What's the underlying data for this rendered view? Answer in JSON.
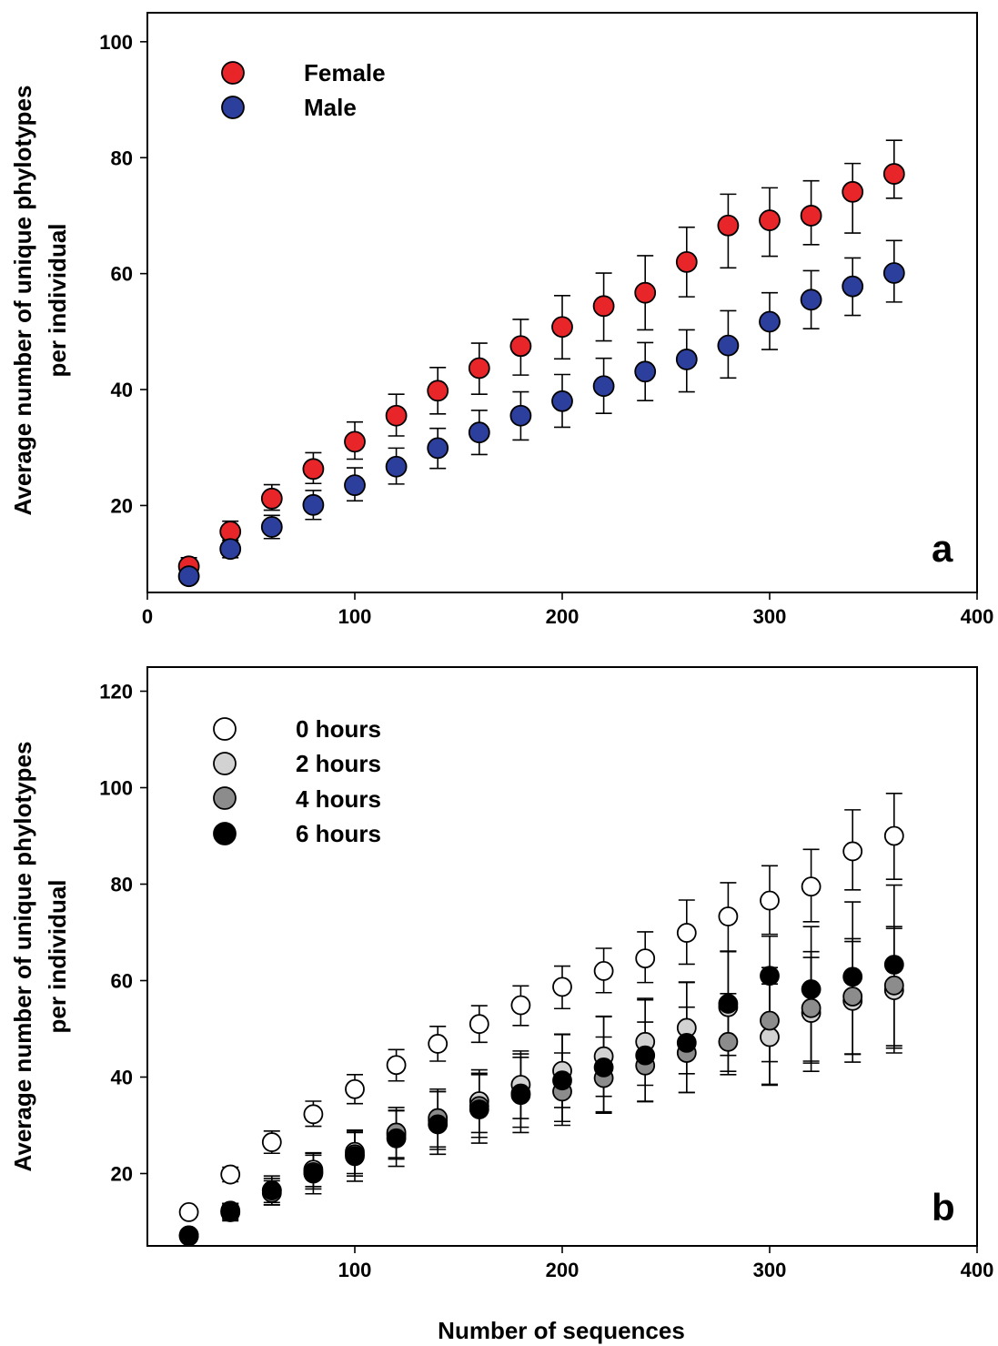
{
  "figure": {
    "xlabel": "Number of sequences"
  },
  "chart_data": [
    {
      "type": "scatter",
      "panel": "a",
      "ylabel_line1": "Average number of unique phylotypes",
      "ylabel_line2": "per individual",
      "xlim": [
        0,
        400
      ],
      "ylim": [
        5,
        105
      ],
      "xticks": [
        "0",
        "100",
        "200",
        "300",
        "400"
      ],
      "yticks": [
        "20",
        "40",
        "60",
        "80",
        "100"
      ],
      "xtick_values": [
        0,
        100,
        200,
        300,
        400
      ],
      "ytick_values": [
        20,
        40,
        60,
        80,
        100
      ],
      "legend_position": "top-left",
      "x": [
        20,
        40,
        60,
        80,
        100,
        120,
        140,
        160,
        180,
        200,
        220,
        240,
        260,
        280,
        300,
        320,
        340,
        360
      ],
      "series": [
        {
          "name": "Female",
          "color": "#e8262a",
          "values": [
            9.5,
            15.5,
            21.2,
            26.3,
            31.0,
            35.5,
            39.8,
            43.7,
            47.5,
            50.8,
            54.4,
            56.7,
            62.0,
            68.3,
            69.2,
            70.0,
            74.1,
            77.2
          ],
          "err_up": [
            1.5,
            1.8,
            2.4,
            2.8,
            3.4,
            3.7,
            4.0,
            4.3,
            4.6,
            5.4,
            5.7,
            6.4,
            6.0,
            5.4,
            5.6,
            6.0,
            4.9,
            5.8
          ],
          "err_down": [
            1.0,
            1.5,
            2.0,
            2.5,
            3.0,
            3.5,
            4.0,
            4.5,
            5.0,
            5.5,
            6.0,
            6.4,
            6.0,
            7.3,
            6.2,
            5.0,
            7.1,
            4.2
          ]
        },
        {
          "name": "Male",
          "color": "#2d3f9c",
          "values": [
            7.8,
            12.5,
            16.3,
            20.1,
            23.5,
            26.7,
            29.9,
            32.6,
            35.5,
            38.0,
            40.6,
            43.1,
            45.2,
            47.6,
            51.7,
            55.5,
            57.8,
            60.1
          ],
          "err_up": [
            1.0,
            1.5,
            2.0,
            2.5,
            3.0,
            3.2,
            3.4,
            3.8,
            4.1,
            4.6,
            4.8,
            5.0,
            5.1,
            6.0,
            5.0,
            5.0,
            4.9,
            5.6
          ],
          "err_down": [
            1.0,
            1.5,
            2.0,
            2.5,
            2.7,
            3.0,
            3.5,
            3.8,
            4.2,
            4.5,
            4.7,
            5.0,
            5.6,
            5.6,
            4.8,
            5.0,
            5.0,
            5.0
          ]
        }
      ],
      "annotation": "a"
    },
    {
      "type": "scatter",
      "panel": "b",
      "ylabel_line1": "Average number of unique phylotypes",
      "ylabel_line2": "per individual",
      "xlim": [
        0,
        400
      ],
      "ylim": [
        5,
        125
      ],
      "xticks": [
        "100",
        "200",
        "300",
        "400"
      ],
      "yticks": [
        "20",
        "40",
        "60",
        "80",
        "100",
        "120"
      ],
      "xtick_values": [
        100,
        200,
        300,
        400
      ],
      "ytick_values": [
        20,
        40,
        60,
        80,
        100,
        120
      ],
      "legend_position": "top-left",
      "x": [
        20,
        40,
        60,
        80,
        100,
        120,
        140,
        160,
        180,
        200,
        220,
        240,
        260,
        280,
        300,
        320,
        340,
        360
      ],
      "series": [
        {
          "name": "0 hours",
          "color": "#ffffff",
          "values": [
            12.0,
            19.8,
            26.5,
            32.3,
            37.5,
            42.5,
            46.9,
            51.0,
            54.9,
            58.7,
            62.0,
            64.6,
            69.9,
            73.3,
            76.6,
            79.5,
            86.8,
            90.0
          ],
          "err_up": [
            1.0,
            1.5,
            2.3,
            2.7,
            3.0,
            3.2,
            3.6,
            3.8,
            4.0,
            4.3,
            4.7,
            5.5,
            6.8,
            7.0,
            7.2,
            7.7,
            8.6,
            8.8
          ],
          "err_down": [
            1.0,
            1.5,
            2.3,
            2.5,
            3.0,
            3.3,
            3.6,
            3.8,
            4.2,
            4.5,
            4.5,
            5.0,
            6.5,
            7.2,
            7.0,
            7.3,
            8.0,
            9.0
          ]
        },
        {
          "name": "2 hours",
          "color": "#d2d2d2",
          "values": [
            7.2,
            12.0,
            16.5,
            20.8,
            24.5,
            28.0,
            31.0,
            35.0,
            38.4,
            41.3,
            44.3,
            47.3,
            50.2,
            54.5,
            48.3,
            53.3,
            55.8,
            58.0
          ],
          "err_up": [
            1.0,
            1.5,
            2.5,
            3.5,
            4.5,
            5.0,
            6.0,
            6.5,
            7.0,
            7.6,
            8.3,
            9.0,
            9.5,
            11.6,
            11.0,
            11.5,
            12.3,
            12.8
          ],
          "err_down": [
            1.0,
            1.5,
            2.5,
            3.5,
            4.5,
            5.0,
            6.0,
            6.5,
            7.0,
            7.6,
            8.3,
            9.0,
            9.5,
            10.0,
            10.0,
            10.4,
            11.0,
            11.5
          ]
        },
        {
          "name": "4 hours",
          "color": "#8c8c8c",
          "values": [
            7.0,
            12.3,
            16.0,
            20.3,
            24.0,
            28.5,
            31.5,
            34.0,
            36.6,
            37.0,
            39.8,
            42.4,
            45.0,
            47.3,
            51.7,
            54.3,
            56.7,
            59.0
          ],
          "err_up": [
            1.0,
            1.5,
            2.5,
            3.5,
            4.5,
            5.2,
            6.0,
            6.5,
            7.5,
            8.0,
            8.5,
            9.0,
            9.5,
            10.0,
            11.0,
            11.7,
            12.0,
            12.2
          ],
          "err_down": [
            1.0,
            1.5,
            2.5,
            3.5,
            4.5,
            5.2,
            6.0,
            6.5,
            7.0,
            7.0,
            7.3,
            7.5,
            8.2,
            6.8,
            8.5,
            11.0,
            12.0,
            13.0
          ]
        },
        {
          "name": "6 hours",
          "color": "#000000",
          "values": [
            7.2,
            12.0,
            16.5,
            20.0,
            23.6,
            27.3,
            30.2,
            33.3,
            36.3,
            39.3,
            42.0,
            44.5,
            47.1,
            55.2,
            61.0,
            58.2,
            60.8,
            63.3
          ],
          "err_up": [
            1.0,
            1.8,
            3.0,
            4.2,
            5.2,
            5.8,
            6.8,
            7.5,
            8.5,
            9.5,
            10.5,
            11.5,
            12.5,
            10.8,
            8.2,
            13.0,
            15.5,
            16.5
          ],
          "err_down": [
            1.0,
            1.8,
            3.0,
            4.2,
            5.2,
            5.8,
            6.2,
            7.0,
            7.8,
            8.5,
            9.2,
            9.5,
            10.3,
            14.0,
            22.5,
            17.0,
            17.7,
            18.3
          ]
        }
      ],
      "annotation": "b"
    }
  ]
}
